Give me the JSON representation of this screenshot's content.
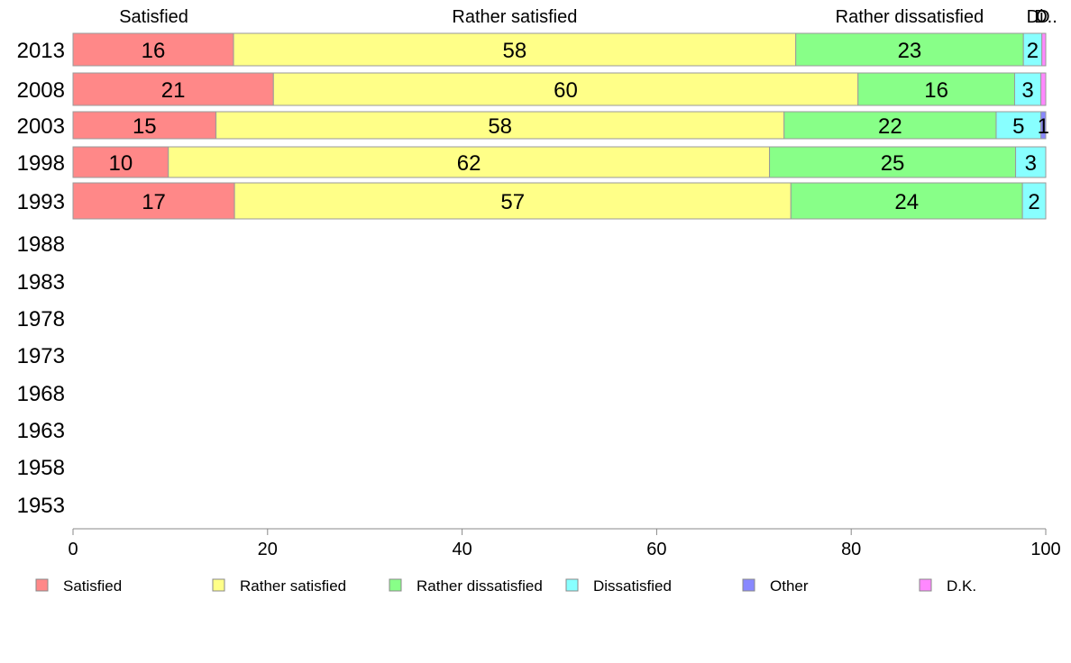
{
  "chart_data": {
    "type": "bar",
    "orientation": "horizontal",
    "stacked": true,
    "categories": [
      "2013",
      "2008",
      "2003",
      "1998",
      "1993",
      "1988",
      "1983",
      "1978",
      "1973",
      "1968",
      "1963",
      "1958",
      "1953"
    ],
    "series": [
      {
        "name": "Satisfied",
        "color": "#ff8888",
        "values": [
          16.5,
          20.6,
          14.7,
          9.8,
          16.6,
          null,
          null,
          null,
          null,
          null,
          null,
          null,
          null
        ],
        "labels": [
          "16",
          "21",
          "15",
          "10",
          "17",
          "",
          "",
          "",
          "",
          "",
          "",
          "",
          ""
        ]
      },
      {
        "name": "Rather satisfied",
        "color": "#ffff88",
        "values": [
          57.8,
          60.1,
          58.4,
          61.8,
          57.2,
          null,
          null,
          null,
          null,
          null,
          null,
          null,
          null
        ],
        "labels": [
          "58",
          "60",
          "58",
          "62",
          "57",
          "",
          "",
          "",
          "",
          "",
          "",
          "",
          ""
        ]
      },
      {
        "name": "Rather dissatisfied",
        "color": "#88ff88",
        "values": [
          23.4,
          16.1,
          21.8,
          25.3,
          23.8,
          null,
          null,
          null,
          null,
          null,
          null,
          null,
          null
        ],
        "labels": [
          "23",
          "16",
          "22",
          "25",
          "24",
          "",
          "",
          "",
          "",
          "",
          "",
          "",
          ""
        ]
      },
      {
        "name": "Dissatisfied",
        "color": "#88ffff",
        "values": [
          1.9,
          2.7,
          4.6,
          3.1,
          2.4,
          null,
          null,
          null,
          null,
          null,
          null,
          null,
          null
        ],
        "labels": [
          "2",
          "3",
          "5",
          "3",
          "2",
          "",
          "",
          "",
          "",
          "",
          "",
          "",
          ""
        ]
      },
      {
        "name": "Other",
        "color": "#8888ff",
        "values": [
          0,
          0,
          0.5,
          0,
          0,
          null,
          null,
          null,
          null,
          null,
          null,
          null,
          null
        ],
        "labels": [
          "",
          "",
          "1",
          "",
          "",
          "",
          "",
          "",
          "",
          "",
          "",
          "",
          ""
        ]
      },
      {
        "name": "D.K.",
        "color": "#ff88ff",
        "values": [
          0.4,
          0.5,
          0,
          0,
          0,
          null,
          null,
          null,
          null,
          null,
          null,
          null,
          null
        ],
        "labels": [
          "",
          "",
          "",
          "",
          "",
          "",
          "",
          "",
          "",
          "",
          "",
          "",
          ""
        ]
      }
    ],
    "top_labels": [
      {
        "text": "Satisfied",
        "x": 8.3
      },
      {
        "text": "Rather satisfied",
        "x": 45.4
      },
      {
        "text": "Rather dissatisfied",
        "x": 86.0
      },
      {
        "text": "Di",
        "x": 98.9
      },
      {
        "text": "O",
        "x": 99.7
      },
      {
        "text": "D..",
        "x": 100.0
      }
    ],
    "xlim": [
      0,
      100
    ],
    "xticks": [
      0,
      20,
      40,
      60,
      80,
      100
    ],
    "grid": false,
    "legend_position": "bottom"
  }
}
